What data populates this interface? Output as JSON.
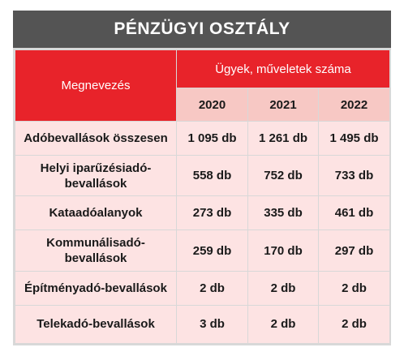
{
  "title": "PÉNZÜGYI OSZTÁLY",
  "header": {
    "name_col": "Megnevezés",
    "group": "Ügyek, műveletek száma",
    "years": [
      "2020",
      "2021",
      "2022"
    ]
  },
  "rows": [
    {
      "name": "Adóbevallások összesen",
      "values": [
        "1 095 db",
        "1 261 db",
        "1 495 db"
      ]
    },
    {
      "name": "Helyi iparűzésiadó-bevallások",
      "values": [
        "558 db",
        "752 db",
        "733 db"
      ]
    },
    {
      "name": "Kataadóalanyok",
      "values": [
        "273 db",
        "335 db",
        "461 db"
      ]
    },
    {
      "name": "Kommunálisadó-bevallások",
      "values": [
        "259 db",
        "170 db",
        "297 db"
      ]
    },
    {
      "name": "Építményadó-bevallások",
      "values": [
        "2 db",
        "2 db",
        "2 db"
      ]
    },
    {
      "name": "Telekadó-bevallások",
      "values": [
        "3 db",
        "2 db",
        "2 db"
      ]
    }
  ],
  "colors": {
    "title_bg": "#545454",
    "header_red": "#e8232a",
    "year_bg": "#f7c8c4",
    "cell_bg": "#fde3e3"
  }
}
